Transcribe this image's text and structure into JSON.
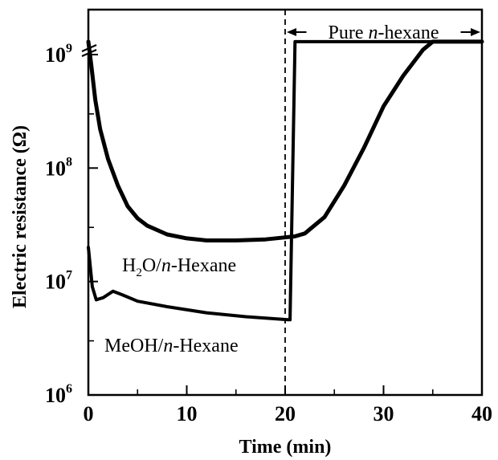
{
  "chart_data": {
    "type": "line",
    "xlabel": "Time (min)",
    "ylabel": "Electric resistance (Ω)",
    "xlim": [
      0,
      40
    ],
    "ylim": [
      1000000,
      1200000000
    ],
    "y_scale": "log",
    "grid": false,
    "x_ticks": [
      {
        "value": 0,
        "label": "0"
      },
      {
        "value": 10,
        "label": "10"
      },
      {
        "value": 20,
        "label": "20"
      },
      {
        "value": 30,
        "label": "30"
      },
      {
        "value": 40,
        "label": "40"
      }
    ],
    "y_ticks": [
      {
        "value": 1000000,
        "base": "10",
        "exp": "6"
      },
      {
        "value": 10000000,
        "base": "10",
        "exp": "7"
      },
      {
        "value": 100000000,
        "base": "10",
        "exp": "8"
      },
      {
        "value": 1000000000,
        "base": "10",
        "exp": "9"
      }
    ],
    "series": [
      {
        "name": "H2O/n-Hexane",
        "label_parts": {
          "a": "H",
          "sub": "2",
          "b": "O/",
          "italic": "n",
          "c": "-Hexane"
        },
        "points": [
          [
            0,
            1300000000
          ],
          [
            0.3,
            800000000
          ],
          [
            0.7,
            400000000
          ],
          [
            1.2,
            220000000
          ],
          [
            2,
            120000000
          ],
          [
            3,
            70000000
          ],
          [
            4,
            46000000
          ],
          [
            5,
            36000000
          ],
          [
            6,
            31000000
          ],
          [
            8,
            26000000
          ],
          [
            10,
            24000000
          ],
          [
            12,
            23000000
          ],
          [
            15,
            23000000
          ],
          [
            18,
            23500000
          ],
          [
            20,
            24500000
          ],
          [
            21,
            25000000
          ],
          [
            22,
            26500000
          ],
          [
            24,
            37000000
          ],
          [
            26,
            70000000
          ],
          [
            28,
            150000000
          ],
          [
            30,
            350000000
          ],
          [
            32,
            650000000
          ],
          [
            34,
            1100000000
          ],
          [
            35,
            1300000000
          ],
          [
            40,
            1300000000
          ]
        ]
      },
      {
        "name": "MeOH/n-Hexane",
        "label_parts": {
          "a": "MeOH/",
          "italic": "n",
          "b": "-Hexane"
        },
        "points": [
          [
            0,
            20000000
          ],
          [
            0.4,
            9000000
          ],
          [
            0.8,
            6900000
          ],
          [
            1.5,
            7200000
          ],
          [
            2.5,
            8200000
          ],
          [
            3.5,
            7600000
          ],
          [
            5,
            6700000
          ],
          [
            8,
            6000000
          ],
          [
            12,
            5300000
          ],
          [
            16,
            4900000
          ],
          [
            20.3,
            4600000
          ],
          [
            20.5,
            4600000
          ],
          [
            21,
            1300000000
          ],
          [
            40,
            1300000000
          ]
        ]
      }
    ],
    "annotations": {
      "vline_x": 20,
      "region_label_a": "Pure ",
      "region_label_italic": "n",
      "region_label_b": "-hexane",
      "region": [
        20,
        40
      ]
    }
  }
}
